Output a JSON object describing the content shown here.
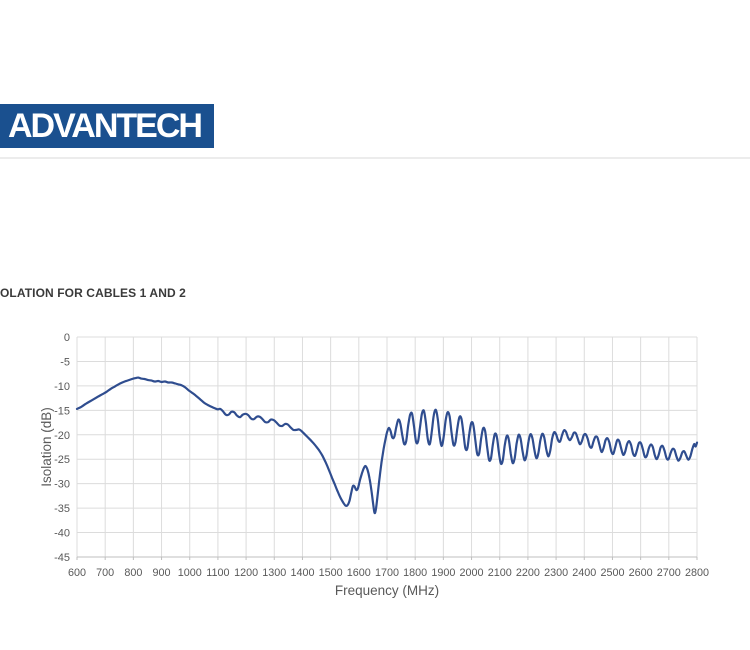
{
  "header": {
    "logo_text": "ADVANTECH"
  },
  "heading": "OLATION FOR CABLES 1 AND 2",
  "colors": {
    "logo_bg": "#1a508f",
    "logo_text": "#ffffff",
    "divider": "#ececec",
    "heading_text": "#3a3a3a",
    "line": "#2f4d8f",
    "grid": "#dcdcdc",
    "axis": "#bfbfbf",
    "label": "#595959"
  },
  "chart_data": {
    "type": "line",
    "title": "OLATION FOR CABLES 1 AND 2",
    "xlabel": "Frequency (MHz)",
    "ylabel": "Isolation (dB)",
    "xlim": [
      600,
      2800
    ],
    "ylim": [
      -45,
      0
    ],
    "x_ticks": [
      600,
      700,
      800,
      900,
      1000,
      1100,
      1200,
      1300,
      1400,
      1500,
      1600,
      1700,
      1800,
      1900,
      2000,
      2100,
      2200,
      2300,
      2400,
      2500,
      2600,
      2700,
      2800
    ],
    "y_ticks": [
      0,
      -5,
      -10,
      -15,
      -20,
      -25,
      -30,
      -35,
      -40,
      -45
    ],
    "grid": true,
    "legend": false,
    "series": [
      {
        "name": "Isolation",
        "points": [
          [
            600,
            -14.7
          ],
          [
            615,
            -14.3
          ],
          [
            630,
            -13.7
          ],
          [
            645,
            -13.2
          ],
          [
            660,
            -12.7
          ],
          [
            675,
            -12.2
          ],
          [
            690,
            -11.7
          ],
          [
            705,
            -11.2
          ],
          [
            720,
            -10.6
          ],
          [
            735,
            -10.1
          ],
          [
            750,
            -9.6
          ],
          [
            765,
            -9.2
          ],
          [
            780,
            -8.9
          ],
          [
            795,
            -8.6
          ],
          [
            808,
            -8.4
          ],
          [
            818,
            -8.3
          ],
          [
            828,
            -8.5
          ],
          [
            840,
            -8.6
          ],
          [
            852,
            -8.8
          ],
          [
            864,
            -8.9
          ],
          [
            876,
            -9.1
          ],
          [
            888,
            -9.0
          ],
          [
            900,
            -9.2
          ],
          [
            912,
            -9.1
          ],
          [
            924,
            -9.3
          ],
          [
            936,
            -9.3
          ],
          [
            948,
            -9.5
          ],
          [
            960,
            -9.7
          ],
          [
            972,
            -9.9
          ],
          [
            984,
            -10.3
          ],
          [
            996,
            -10.9
          ],
          [
            1008,
            -11.4
          ],
          [
            1022,
            -12.0
          ],
          [
            1036,
            -12.7
          ],
          [
            1050,
            -13.4
          ],
          [
            1064,
            -13.9
          ],
          [
            1078,
            -14.3
          ],
          [
            1090,
            -14.6
          ],
          [
            1100,
            -14.8
          ],
          [
            1108,
            -14.7
          ],
          [
            1118,
            -15.2
          ],
          [
            1128,
            -15.9
          ],
          [
            1138,
            -15.9
          ],
          [
            1148,
            -15.3
          ],
          [
            1158,
            -15.4
          ],
          [
            1168,
            -16.1
          ],
          [
            1178,
            -16.4
          ],
          [
            1188,
            -15.9
          ],
          [
            1198,
            -15.7
          ],
          [
            1208,
            -16.0
          ],
          [
            1218,
            -16.7
          ],
          [
            1228,
            -16.8
          ],
          [
            1238,
            -16.3
          ],
          [
            1248,
            -16.3
          ],
          [
            1258,
            -16.8
          ],
          [
            1268,
            -17.4
          ],
          [
            1278,
            -17.4
          ],
          [
            1288,
            -16.9
          ],
          [
            1298,
            -17.0
          ],
          [
            1308,
            -17.5
          ],
          [
            1318,
            -18.1
          ],
          [
            1328,
            -18.2
          ],
          [
            1338,
            -17.8
          ],
          [
            1348,
            -17.9
          ],
          [
            1358,
            -18.5
          ],
          [
            1368,
            -19.0
          ],
          [
            1378,
            -19.0
          ],
          [
            1388,
            -18.9
          ],
          [
            1398,
            -19.3
          ],
          [
            1410,
            -20.0
          ],
          [
            1422,
            -20.7
          ],
          [
            1434,
            -21.4
          ],
          [
            1446,
            -22.2
          ],
          [
            1458,
            -23.1
          ],
          [
            1470,
            -24.2
          ],
          [
            1482,
            -25.6
          ],
          [
            1494,
            -27.2
          ],
          [
            1505,
            -28.8
          ],
          [
            1515,
            -30.2
          ],
          [
            1525,
            -31.6
          ],
          [
            1535,
            -32.9
          ],
          [
            1545,
            -33.9
          ],
          [
            1553,
            -34.5
          ],
          [
            1560,
            -34.4
          ],
          [
            1567,
            -33.5
          ],
          [
            1573,
            -31.9
          ],
          [
            1579,
            -30.5
          ],
          [
            1585,
            -30.6
          ],
          [
            1591,
            -31.3
          ],
          [
            1597,
            -30.9
          ],
          [
            1604,
            -29.3
          ],
          [
            1611,
            -27.9
          ],
          [
            1618,
            -26.8
          ],
          [
            1624,
            -26.4
          ],
          [
            1631,
            -27.2
          ],
          [
            1638,
            -28.9
          ],
          [
            1645,
            -31.5
          ],
          [
            1651,
            -34.2
          ],
          [
            1656,
            -36.0
          ],
          [
            1661,
            -35.1
          ],
          [
            1667,
            -32.2
          ],
          [
            1674,
            -28.6
          ],
          [
            1681,
            -25.5
          ],
          [
            1688,
            -22.9
          ],
          [
            1695,
            -20.8
          ],
          [
            1701,
            -19.3
          ],
          [
            1707,
            -18.6
          ],
          [
            1713,
            -19.3
          ],
          [
            1719,
            -20.6
          ],
          [
            1726,
            -20.4
          ],
          [
            1733,
            -18.4
          ],
          [
            1740,
            -16.9
          ],
          [
            1747,
            -17.6
          ],
          [
            1754,
            -20.0
          ],
          [
            1761,
            -21.9
          ],
          [
            1768,
            -21.3
          ],
          [
            1775,
            -18.2
          ],
          [
            1782,
            -15.9
          ],
          [
            1789,
            -15.7
          ],
          [
            1796,
            -18.4
          ],
          [
            1803,
            -21.4
          ],
          [
            1810,
            -21.4
          ],
          [
            1817,
            -18.5
          ],
          [
            1824,
            -15.7
          ],
          [
            1831,
            -15.1
          ],
          [
            1838,
            -17.5
          ],
          [
            1845,
            -21.0
          ],
          [
            1852,
            -21.9
          ],
          [
            1859,
            -19.3
          ],
          [
            1866,
            -16.0
          ],
          [
            1873,
            -14.9
          ],
          [
            1880,
            -16.7
          ],
          [
            1887,
            -20.4
          ],
          [
            1894,
            -22.3
          ],
          [
            1901,
            -20.5
          ],
          [
            1908,
            -17.1
          ],
          [
            1915,
            -15.4
          ],
          [
            1922,
            -16.2
          ],
          [
            1929,
            -19.5
          ],
          [
            1936,
            -22.1
          ],
          [
            1943,
            -21.5
          ],
          [
            1950,
            -18.5
          ],
          [
            1957,
            -16.4
          ],
          [
            1964,
            -16.7
          ],
          [
            1971,
            -19.6
          ],
          [
            1978,
            -22.7
          ],
          [
            1985,
            -22.8
          ],
          [
            1992,
            -19.8
          ],
          [
            1999,
            -17.6
          ],
          [
            2006,
            -17.9
          ],
          [
            2013,
            -20.9
          ],
          [
            2020,
            -23.9
          ],
          [
            2027,
            -23.8
          ],
          [
            2034,
            -20.8
          ],
          [
            2041,
            -18.7
          ],
          [
            2048,
            -19.2
          ],
          [
            2055,
            -22.3
          ],
          [
            2062,
            -25.1
          ],
          [
            2069,
            -24.8
          ],
          [
            2076,
            -21.8
          ],
          [
            2083,
            -19.8
          ],
          [
            2090,
            -20.5
          ],
          [
            2097,
            -23.6
          ],
          [
            2104,
            -25.9
          ],
          [
            2111,
            -25.2
          ],
          [
            2118,
            -22.1
          ],
          [
            2125,
            -20.2
          ],
          [
            2132,
            -20.9
          ],
          [
            2139,
            -23.8
          ],
          [
            2146,
            -25.8
          ],
          [
            2153,
            -24.8
          ],
          [
            2160,
            -21.8
          ],
          [
            2167,
            -20.0
          ],
          [
            2174,
            -20.8
          ],
          [
            2181,
            -23.4
          ],
          [
            2188,
            -25.2
          ],
          [
            2195,
            -24.2
          ],
          [
            2202,
            -21.4
          ],
          [
            2209,
            -19.9
          ],
          [
            2216,
            -20.7
          ],
          [
            2223,
            -23.1
          ],
          [
            2230,
            -24.8
          ],
          [
            2237,
            -23.8
          ],
          [
            2244,
            -21.2
          ],
          [
            2251,
            -19.8
          ],
          [
            2258,
            -20.6
          ],
          [
            2265,
            -22.9
          ],
          [
            2272,
            -24.4
          ],
          [
            2279,
            -23.3
          ],
          [
            2286,
            -20.8
          ],
          [
            2293,
            -19.5
          ],
          [
            2300,
            -19.9
          ],
          [
            2307,
            -21.1
          ],
          [
            2314,
            -21.4
          ],
          [
            2321,
            -20.1
          ],
          [
            2328,
            -19.1
          ],
          [
            2335,
            -19.4
          ],
          [
            2342,
            -20.5
          ],
          [
            2349,
            -21.1
          ],
          [
            2356,
            -20.5
          ],
          [
            2363,
            -19.6
          ],
          [
            2370,
            -19.7
          ],
          [
            2377,
            -20.8
          ],
          [
            2384,
            -21.9
          ],
          [
            2391,
            -21.4
          ],
          [
            2398,
            -20.1
          ],
          [
            2405,
            -19.9
          ],
          [
            2412,
            -20.8
          ],
          [
            2419,
            -22.3
          ],
          [
            2426,
            -22.6
          ],
          [
            2433,
            -21.3
          ],
          [
            2440,
            -20.4
          ],
          [
            2447,
            -20.6
          ],
          [
            2454,
            -22.1
          ],
          [
            2461,
            -23.5
          ],
          [
            2468,
            -22.8
          ],
          [
            2475,
            -21.2
          ],
          [
            2482,
            -20.7
          ],
          [
            2489,
            -21.6
          ],
          [
            2496,
            -23.4
          ],
          [
            2503,
            -23.9
          ],
          [
            2510,
            -22.5
          ],
          [
            2517,
            -21.1
          ],
          [
            2524,
            -21.3
          ],
          [
            2531,
            -22.8
          ],
          [
            2538,
            -24.1
          ],
          [
            2545,
            -23.5
          ],
          [
            2552,
            -21.9
          ],
          [
            2559,
            -21.3
          ],
          [
            2566,
            -22.1
          ],
          [
            2573,
            -23.8
          ],
          [
            2580,
            -24.3
          ],
          [
            2587,
            -23.1
          ],
          [
            2594,
            -21.7
          ],
          [
            2601,
            -21.7
          ],
          [
            2608,
            -23.0
          ],
          [
            2615,
            -24.5
          ],
          [
            2622,
            -24.3
          ],
          [
            2629,
            -22.8
          ],
          [
            2636,
            -22.0
          ],
          [
            2643,
            -22.5
          ],
          [
            2650,
            -24.1
          ],
          [
            2657,
            -25.0
          ],
          [
            2664,
            -24.1
          ],
          [
            2671,
            -22.6
          ],
          [
            2678,
            -22.3
          ],
          [
            2685,
            -23.3
          ],
          [
            2692,
            -24.8
          ],
          [
            2699,
            -25.0
          ],
          [
            2706,
            -23.8
          ],
          [
            2713,
            -22.9
          ],
          [
            2720,
            -23.1
          ],
          [
            2727,
            -24.4
          ],
          [
            2734,
            -25.3
          ],
          [
            2741,
            -24.7
          ],
          [
            2748,
            -23.6
          ],
          [
            2755,
            -23.4
          ],
          [
            2762,
            -24.3
          ],
          [
            2769,
            -25.1
          ],
          [
            2776,
            -24.5
          ],
          [
            2783,
            -23.0
          ],
          [
            2790,
            -21.9
          ],
          [
            2795,
            -22.4
          ],
          [
            2800,
            -21.6
          ]
        ]
      }
    ]
  }
}
